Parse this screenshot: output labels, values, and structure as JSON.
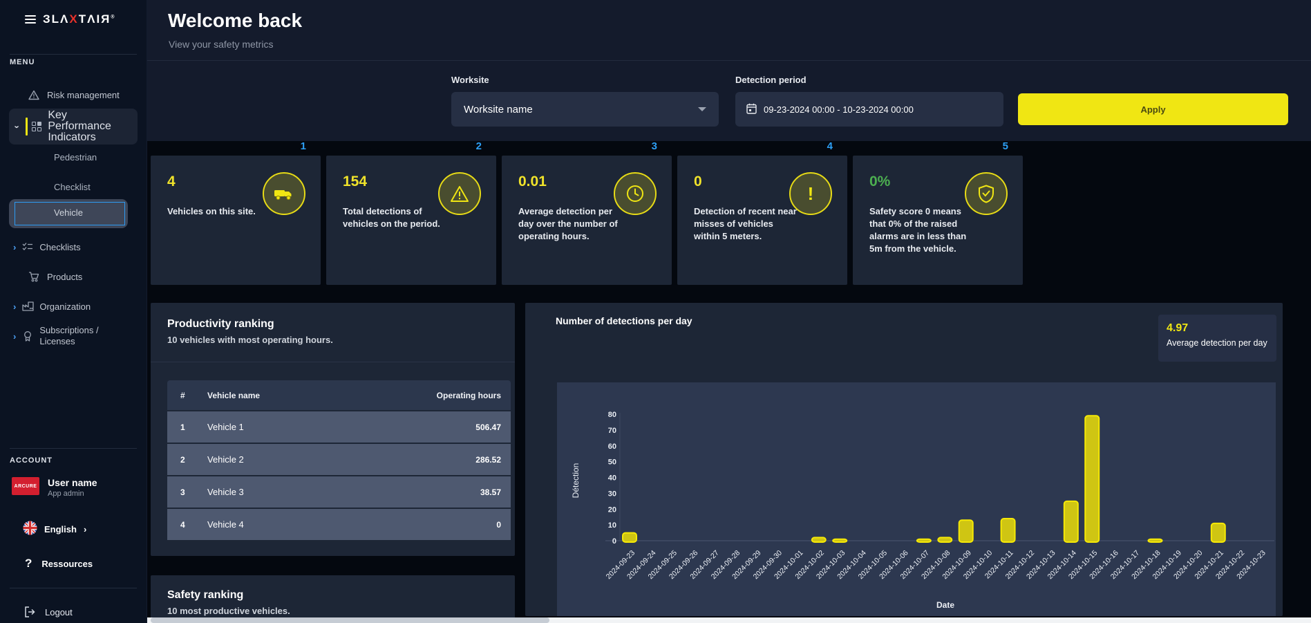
{
  "colors": {
    "accent_yellow": "#f0e613",
    "accent_blue": "#2d9ff5",
    "green": "#4caf50",
    "bar_fill": "#cfc513",
    "bar_stroke": "#f6e905"
  },
  "sidebar": {
    "brand": {
      "pre": "ЗLΛ",
      "x": "X",
      "post": "TΛIЯ",
      "reg": "®"
    },
    "menu_label": "MENU",
    "risk": "Risk management",
    "kpi": "Key Performance Indicators",
    "sub_pedestrian": "Pedestrian",
    "sub_checklist": "Checklist",
    "sub_vehicle": "Vehicle",
    "checklists": "Checklists",
    "products": "Products",
    "organization": "Organization",
    "subscriptions": "Subscriptions / Licenses",
    "account_label": "ACCOUNT",
    "user": {
      "logo": "ARCURE",
      "name": "User name",
      "role": "App admin"
    },
    "language": "English",
    "resources": "Ressources",
    "logout": "Logout"
  },
  "header": {
    "title": "Welcome back",
    "subtitle": "View your safety metrics"
  },
  "filters": {
    "worksite_label": "Worksite",
    "worksite_value": "Worksite name",
    "period_label": "Detection period",
    "period_value": "09-23-2024 00:00 - 10-23-2024 00:00",
    "apply_label": "Apply"
  },
  "kpis": [
    {
      "index": "1",
      "value": "4",
      "desc": "Vehicles on this site.",
      "icon": "truck-icon",
      "value_color": "#f0e32a"
    },
    {
      "index": "2",
      "value": "154",
      "desc": "Total detections of vehicles on the period.",
      "icon": "warning-triangle-icon",
      "value_color": "#f0e32a"
    },
    {
      "index": "3",
      "value": "0.01",
      "desc": "Average detection per day over the number of operating hours.",
      "icon": "clock-icon",
      "value_color": "#f0e32a"
    },
    {
      "index": "4",
      "value": "0",
      "desc": "Detection of recent near misses of vehicles within 5 meters.",
      "icon": "exclamation-icon",
      "value_color": "#f0e32a"
    },
    {
      "index": "5",
      "value": "0%",
      "desc": "Safety score 0 means that 0% of the raised alarms are in less than 5m from the vehicle.",
      "icon": "shield-check-icon",
      "value_color": "#4caf50"
    }
  ],
  "productivity": {
    "title": "Productivity ranking",
    "subtitle": "10 vehicles with most operating hours.",
    "columns": {
      "rank": "#",
      "name": "Vehicle name",
      "hours": "Operating hours"
    },
    "rows": [
      {
        "rank": "1",
        "name": "Vehicle 1",
        "hours": "506.47"
      },
      {
        "rank": "2",
        "name": "Vehicle 2",
        "hours": "286.52"
      },
      {
        "rank": "3",
        "name": "Vehicle 3",
        "hours": "38.57"
      },
      {
        "rank": "4",
        "name": "Vehicle 4",
        "hours": "0"
      }
    ]
  },
  "safety": {
    "title": "Safety ranking",
    "subtitle": "10 most productive vehicles."
  },
  "chart": {
    "title": "Number of detections per day",
    "badge_value": "4.97",
    "badge_label": "Average detection per day"
  },
  "chart_data": {
    "type": "bar",
    "title": "Number of detections per day",
    "xlabel": "Date",
    "ylabel": "Détection",
    "ylim": [
      0,
      80
    ],
    "yticks": [
      0,
      10,
      20,
      30,
      40,
      50,
      60,
      70,
      80
    ],
    "grid": false,
    "categories": [
      "2024-09-23",
      "2024-09-24",
      "2024-09-25",
      "2024-09-26",
      "2024-09-27",
      "2024-09-28",
      "2024-09-29",
      "2024-09-30",
      "2024-10-01",
      "2024-10-02",
      "2024-10-03",
      "2024-10-04",
      "2024-10-05",
      "2024-10-06",
      "2024-10-07",
      "2024-10-08",
      "2024-10-09",
      "2024-10-10",
      "2024-10-11",
      "2024-10-12",
      "2024-10-13",
      "2024-10-14",
      "2024-10-15",
      "2024-10-16",
      "2024-10-17",
      "2024-10-18",
      "2024-10-19",
      "2024-10-20",
      "2024-10-21",
      "2024-10-22",
      "2024-10-23"
    ],
    "values": [
      5,
      0,
      0,
      0,
      0,
      0,
      0,
      0,
      0,
      2,
      1,
      0,
      0,
      0,
      1,
      2,
      13,
      0,
      14,
      0,
      0,
      25,
      79,
      0,
      0,
      1,
      0,
      0,
      11,
      0,
      0
    ]
  }
}
